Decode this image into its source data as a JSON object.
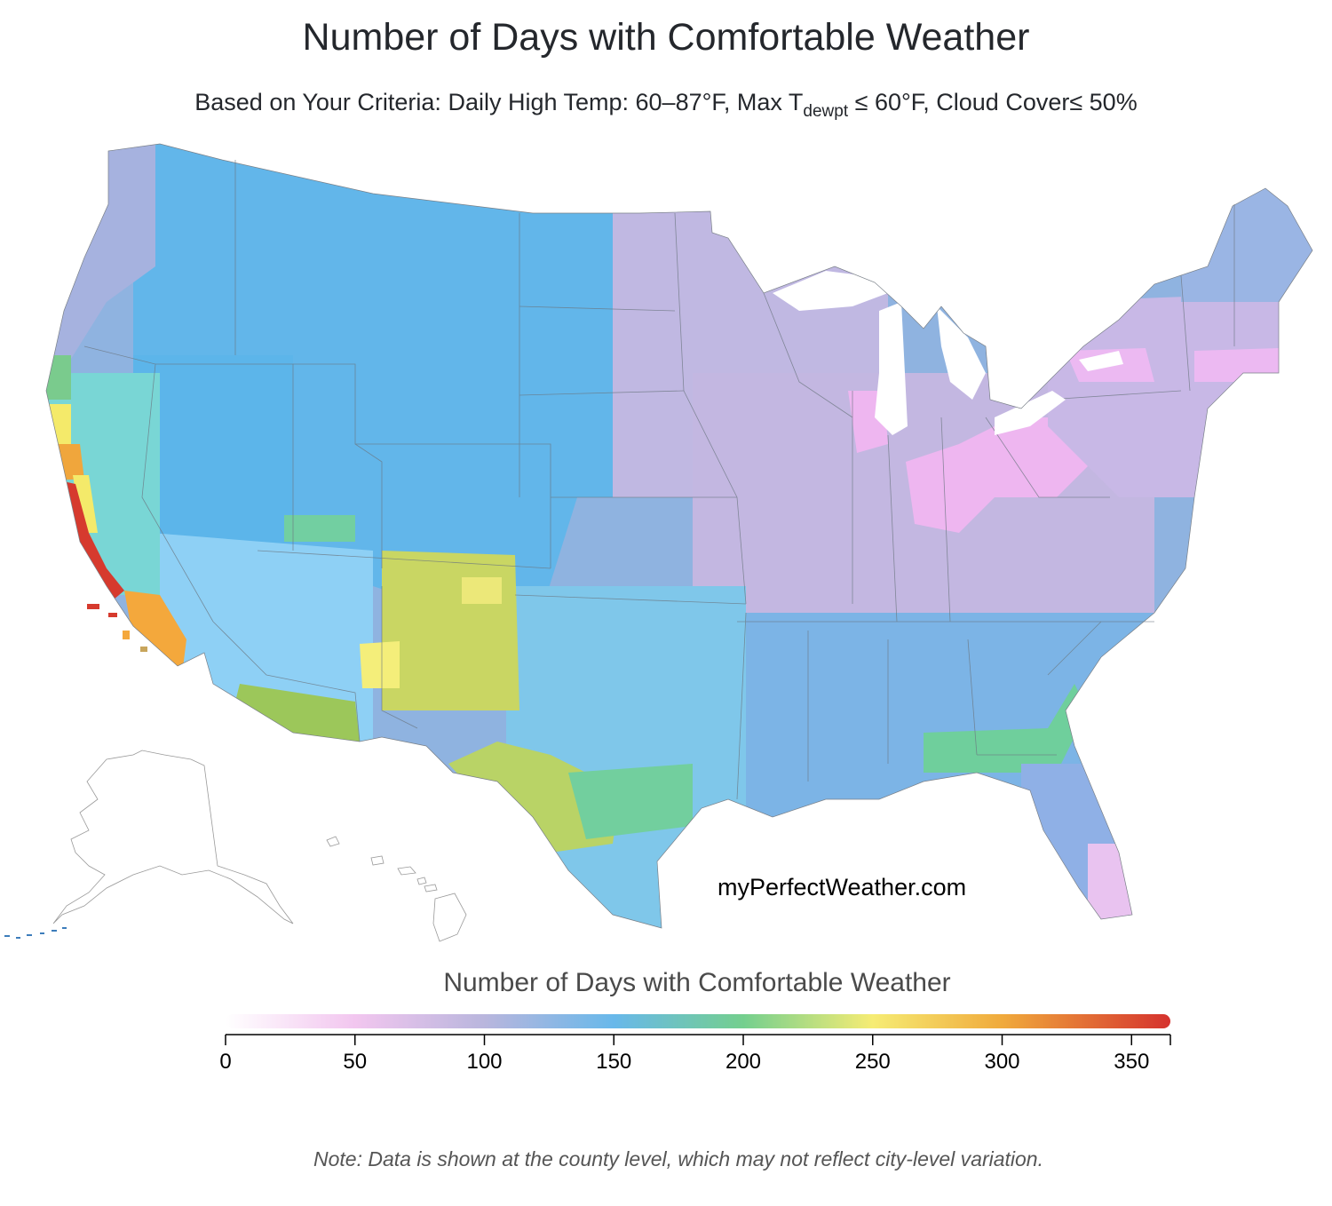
{
  "title": "Number of Days with Comfortable Weather",
  "subtitle": {
    "prefix": "Based on Your Criteria: Daily High Temp: 60–87°F, Max T",
    "sub": "dewpt",
    "suffix": " ≤ 60°F, Cloud Cover≤ 50%"
  },
  "watermark": "myPerfectWeather.com",
  "note": "Note: Data is shown at the county level, which may not reflect city-level variation.",
  "map": {
    "base_color": "#8fb3e0",
    "regions": [
      {
        "name": "northern-rockies-plains",
        "days": 155,
        "color": "#62b6ea"
      },
      {
        "name": "pacific-northwest",
        "days": 115,
        "color": "#a6b2df"
      },
      {
        "name": "great-basin",
        "days": 150,
        "color": "#5cb5ea"
      },
      {
        "name": "upper-midwest",
        "days": 105,
        "color": "#c0b8e2"
      },
      {
        "name": "midwest-ohio-valley",
        "days": 100,
        "color": "#c3b7e1"
      },
      {
        "name": "great-lakes-pink",
        "days": 55,
        "color": "#eeb6f0"
      },
      {
        "name": "northeast",
        "days": 90,
        "color": "#c8b8e6"
      },
      {
        "name": "new-england-north",
        "days": 125,
        "color": "#9ab5e4"
      },
      {
        "name": "southeast",
        "days": 140,
        "color": "#7cb4e6"
      },
      {
        "name": "gulf-coast-green",
        "days": 195,
        "color": "#6fcf9c"
      },
      {
        "name": "florida",
        "days": 125,
        "color": "#8fb0e6"
      },
      {
        "name": "south-florida",
        "days": 60,
        "color": "#e9c3f0"
      },
      {
        "name": "southern-plains",
        "days": 150,
        "color": "#7fc7ea"
      },
      {
        "name": "south-texas",
        "days": 225,
        "color": "#b9d366"
      },
      {
        "name": "southwest-desert",
        "days": 165,
        "color": "#8ed0f5"
      },
      {
        "name": "arizona-south",
        "days": 215,
        "color": "#9cc75a"
      },
      {
        "name": "new-mexico",
        "days": 230,
        "color": "#c9d663"
      },
      {
        "name": "new-mexico-yellow",
        "days": 250,
        "color": "#f4ee7a"
      },
      {
        "name": "central-california",
        "days": 175,
        "color": "#79d6d5"
      },
      {
        "name": "california-north-coast",
        "days": 250,
        "color": "#f4ea6a"
      },
      {
        "name": "bay-area",
        "days": 290,
        "color": "#f0a63c"
      },
      {
        "name": "california-central-coast",
        "days": 350,
        "color": "#d63a2e"
      },
      {
        "name": "southern-california",
        "days": 300,
        "color": "#f4a83c"
      }
    ]
  },
  "legend": {
    "title": "Number of Days with Comfortable Weather",
    "min": 0,
    "max": 365,
    "ticks": [
      "0",
      "50",
      "100",
      "150",
      "200",
      "250",
      "300",
      "350"
    ],
    "tick_values": [
      0,
      50,
      100,
      150,
      200,
      250,
      300,
      350
    ],
    "stops": [
      {
        "value": 0,
        "color": "#ffffff"
      },
      {
        "value": 50,
        "color": "#f2c6ef"
      },
      {
        "value": 100,
        "color": "#b9b6dd"
      },
      {
        "value": 150,
        "color": "#68b8ea"
      },
      {
        "value": 200,
        "color": "#74cf8e"
      },
      {
        "value": 250,
        "color": "#f6ec74"
      },
      {
        "value": 300,
        "color": "#f0aa3c"
      },
      {
        "value": 365,
        "color": "#d5322e"
      }
    ]
  }
}
